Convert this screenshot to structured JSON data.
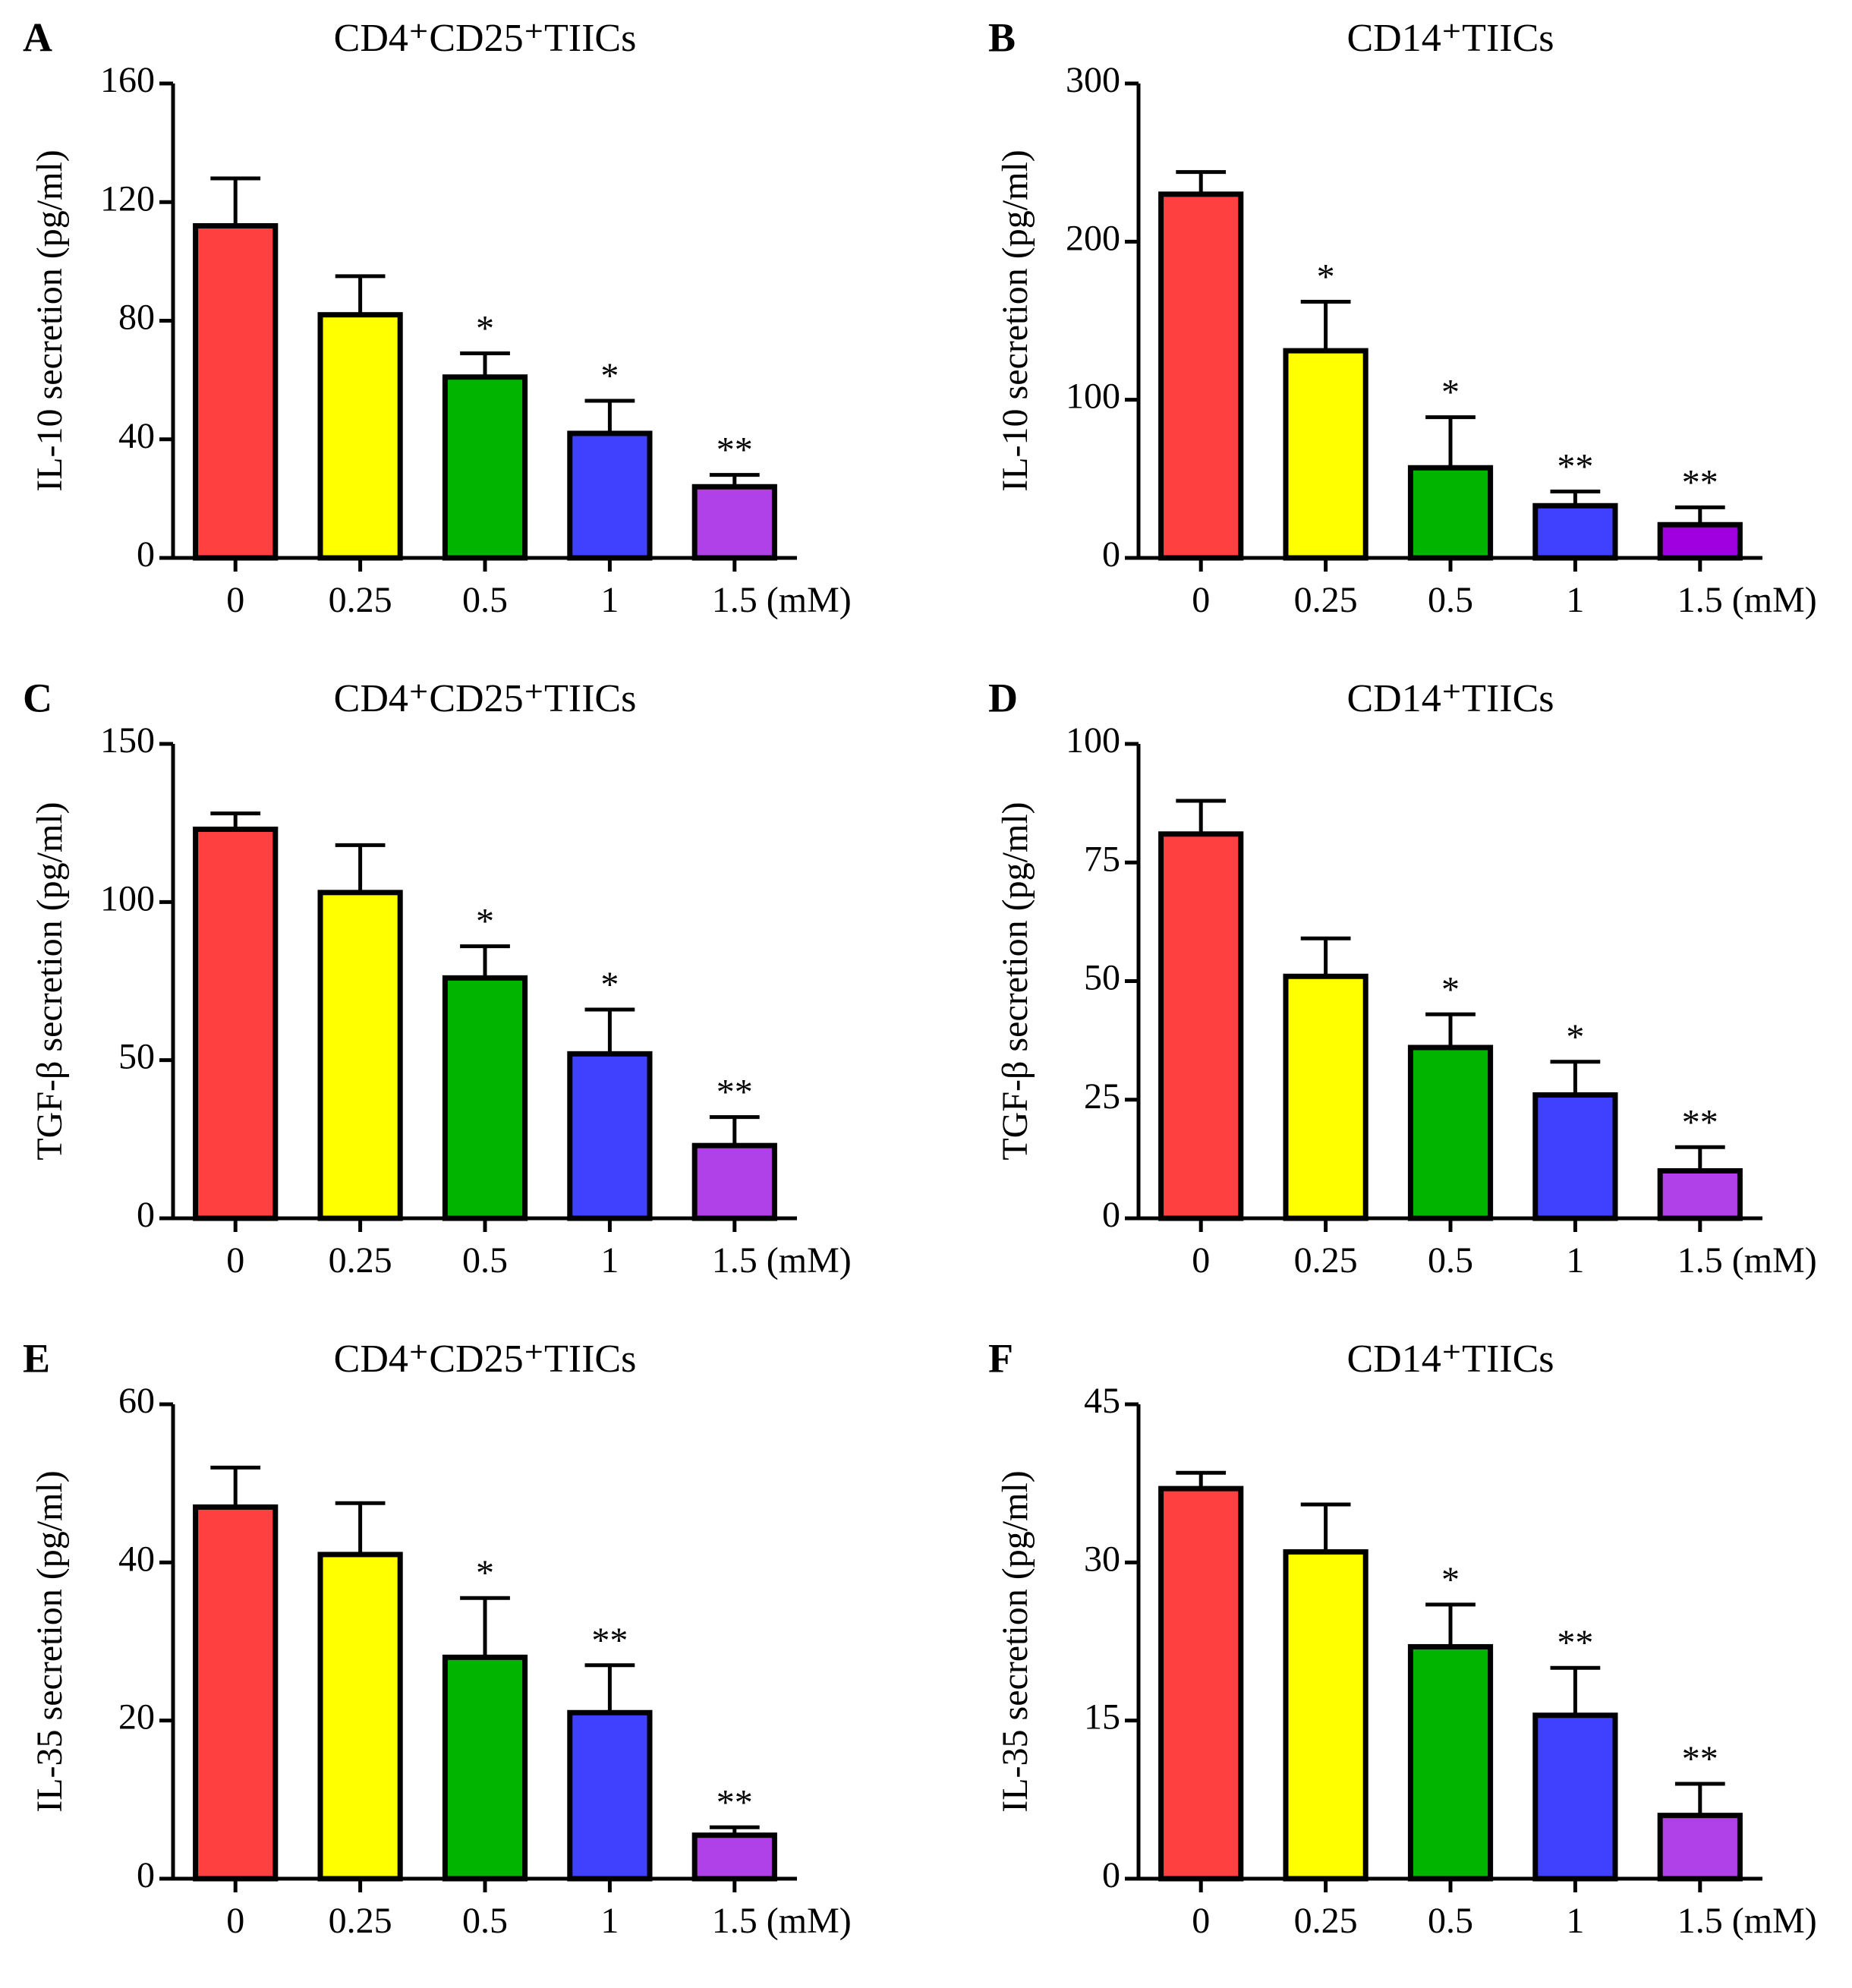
{
  "chart_data": [
    {
      "type": "bar",
      "label": "A",
      "title": "CD4⁺CD25⁺TIICs",
      "ylabel": "IL-10 secretion (pg/ml)",
      "xlabel": "(mM)",
      "categories": [
        "0",
        "0.25",
        "0.5",
        "1",
        "1.5"
      ],
      "values": [
        112,
        82,
        61,
        42,
        24
      ],
      "errors": [
        16,
        13,
        8,
        11,
        4
      ],
      "annotations": [
        null,
        null,
        "*",
        "*",
        "**"
      ],
      "colors": [
        "#ff4040",
        "#ffff00",
        "#00b400",
        "#4040ff",
        "#b040e8"
      ],
      "ylim": [
        0,
        160
      ],
      "yticks": [
        0,
        40,
        80,
        120,
        160
      ]
    },
    {
      "type": "bar",
      "label": "B",
      "title": "CD14⁺TIICs",
      "ylabel": "IL-10 secretion (pg/ml)",
      "xlabel": "(mM)",
      "categories": [
        "0",
        "0.25",
        "0.5",
        "1",
        "1.5"
      ],
      "values": [
        230,
        131,
        57,
        33,
        21
      ],
      "errors": [
        14,
        31,
        32,
        9,
        11
      ],
      "annotations": [
        null,
        "*",
        "*",
        "**",
        "**"
      ],
      "colors": [
        "#ff4040",
        "#ffff00",
        "#00b400",
        "#4040ff",
        "#a000e0"
      ],
      "ylim": [
        0,
        300
      ],
      "yticks": [
        0,
        100,
        200,
        300
      ]
    },
    {
      "type": "bar",
      "label": "C",
      "title": "CD4⁺CD25⁺TIICs",
      "ylabel": "TGF-β secretion (pg/ml)",
      "xlabel": "(mM)",
      "categories": [
        "0",
        "0.25",
        "0.5",
        "1",
        "1.5"
      ],
      "values": [
        123,
        103,
        76,
        52,
        23
      ],
      "errors": [
        5,
        15,
        10,
        14,
        9
      ],
      "annotations": [
        null,
        null,
        "*",
        "*",
        "**"
      ],
      "colors": [
        "#ff4040",
        "#ffff00",
        "#00b400",
        "#4040ff",
        "#b040e8"
      ],
      "ylim": [
        0,
        150
      ],
      "yticks": [
        0,
        50,
        100,
        150
      ]
    },
    {
      "type": "bar",
      "label": "D",
      "title": "CD14⁺TIICs",
      "ylabel": "TGF-β secretion (pg/ml)",
      "xlabel": "(mM)",
      "categories": [
        "0",
        "0.25",
        "0.5",
        "1",
        "1.5"
      ],
      "values": [
        81,
        51,
        36,
        26,
        10
      ],
      "errors": [
        7,
        8,
        7,
        7,
        5
      ],
      "annotations": [
        null,
        null,
        "*",
        "*",
        "**"
      ],
      "colors": [
        "#ff4040",
        "#ffff00",
        "#00b400",
        "#4040ff",
        "#b040e8"
      ],
      "ylim": [
        0,
        100
      ],
      "yticks": [
        0,
        25,
        50,
        75,
        100
      ]
    },
    {
      "type": "bar",
      "label": "E",
      "title": "CD4⁺CD25⁺TIICs",
      "ylabel": "IL-35 secretion (pg/ml)",
      "xlabel": "(mM)",
      "categories": [
        "0",
        "0.25",
        "0.5",
        "1",
        "1.5"
      ],
      "values": [
        47,
        41,
        28,
        21,
        5.5
      ],
      "errors": [
        5,
        6.5,
        7.5,
        6,
        1
      ],
      "annotations": [
        null,
        null,
        "*",
        "**",
        "**"
      ],
      "colors": [
        "#ff4040",
        "#ffff00",
        "#00b400",
        "#4040ff",
        "#b040e8"
      ],
      "ylim": [
        0,
        60
      ],
      "yticks": [
        0,
        20,
        40,
        60
      ]
    },
    {
      "type": "bar",
      "label": "F",
      "title": "CD14⁺TIICs",
      "ylabel": "IL-35 secretion (pg/ml)",
      "xlabel": "(mM)",
      "categories": [
        "0",
        "0.25",
        "0.5",
        "1",
        "1.5"
      ],
      "values": [
        37,
        31,
        22,
        15.5,
        6
      ],
      "errors": [
        1.5,
        4.5,
        4,
        4.5,
        3
      ],
      "annotations": [
        null,
        null,
        "*",
        "**",
        "**"
      ],
      "colors": [
        "#ff4040",
        "#ffff00",
        "#00b400",
        "#4040ff",
        "#b040e8"
      ],
      "ylim": [
        0,
        45
      ],
      "yticks": [
        0,
        15,
        30,
        45
      ]
    }
  ]
}
